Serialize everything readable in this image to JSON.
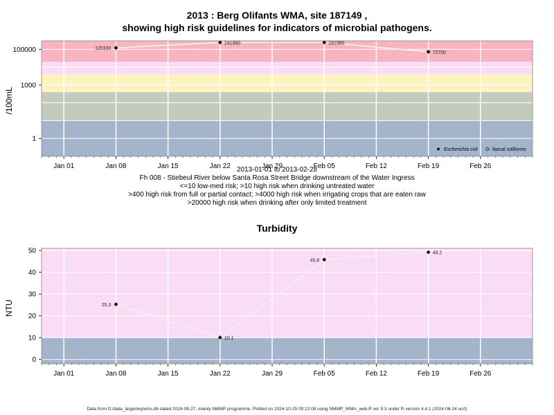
{
  "page": {
    "title_line1": "2013 : Berg Olifants WMA, site 187149 ,",
    "title_line2": "showing high risk guidelines for indicators of microbial pathogens.",
    "caption_lines": [
      "2013-01-01 to 2013-02-28",
      "Fh 008 - Stiebeul River below Santa Rosa Street Bridge downstream of the Water Ingress",
      "<=10 low-med risk; >10 high risk when drinking untreated water",
      ">400 high risk from full or partial contact; >4000 high risk when irrigating crops that are eaten raw",
      ">20000 high risk when drinking after only limited treatment"
    ],
    "footer": "Data from D:/data_large/wq/wms.db dated 2024-08-27, mainly NMMP programme. Plotted on 2024-10-25 00:12:08 using NMMP_WMA_web.R ver 9.3 under R version 4.4.1 (2024-06-14 ucrt)"
  },
  "chart_data": [
    {
      "type": "line",
      "title": "",
      "ylabel": "/100mL",
      "xlabel": "",
      "y_scale": "log10",
      "ylim": [
        0.1,
        300000
      ],
      "xlim": [
        "2012-12-29",
        "2013-03-05"
      ],
      "y_ticks": [
        1,
        1000,
        100000
      ],
      "y_tick_labels": [
        "1",
        "1000",
        "100000"
      ],
      "x_ticks": [
        "2013-01-01",
        "2013-01-08",
        "2013-01-15",
        "2013-01-22",
        "2013-01-29",
        "2013-02-05",
        "2013-02-12",
        "2013-02-19",
        "2013-02-26"
      ],
      "x_tick_labels": [
        "Jan 01",
        "Jan 08",
        "Jan 15",
        "Jan 22",
        "Jan 29",
        "Feb 05",
        "Feb 12",
        "Feb 19",
        "Feb 26"
      ],
      "grid": true,
      "risk_bands": [
        {
          "from": 0.1,
          "to": 10,
          "color": "#a3b4cb"
        },
        {
          "from": 10,
          "to": 400,
          "color": "#c3cbbf"
        },
        {
          "from": 400,
          "to": 4000,
          "color": "#fbf4c1"
        },
        {
          "from": 4000,
          "to": 20000,
          "color": "#fbdcf6"
        },
        {
          "from": 20000,
          "to": 300000,
          "color": "#f8b4c0"
        }
      ],
      "series": [
        {
          "name": "Escherichia coli",
          "x": [
            "2013-01-08",
            "2013-01-22",
            "2013-02-05",
            "2013-02-19"
          ],
          "values": [
            120330,
            241960,
            241960,
            72700
          ],
          "labels": [
            "120330",
            "241960",
            "241960",
            "72700"
          ]
        },
        {
          "name": "faecal coliforms",
          "x": [],
          "values": []
        }
      ],
      "legend_position": "bottom-right"
    },
    {
      "type": "line",
      "title": "Turbidity",
      "ylabel": "NTU",
      "xlabel": "",
      "y_scale": "linear",
      "ylim": [
        -2,
        51
      ],
      "xlim": [
        "2012-12-29",
        "2013-03-05"
      ],
      "y_ticks": [
        0,
        10,
        20,
        30,
        40,
        50
      ],
      "y_tick_labels": [
        "0",
        "10",
        "20",
        "30",
        "40",
        "50"
      ],
      "x_ticks": [
        "2013-01-01",
        "2013-01-08",
        "2013-01-15",
        "2013-01-22",
        "2013-01-29",
        "2013-02-05",
        "2013-02-12",
        "2013-02-19",
        "2013-02-26"
      ],
      "x_tick_labels": [
        "Jan 01",
        "Jan 08",
        "Jan 15",
        "Jan 22",
        "Jan 29",
        "Feb 05",
        "Feb 12",
        "Feb 19",
        "Feb 26"
      ],
      "grid": true,
      "risk_bands": [
        {
          "from": -2,
          "to": 10,
          "color": "#a3b4cb"
        },
        {
          "from": 10,
          "to": 51,
          "color": "#fbdcf6"
        }
      ],
      "series": [
        {
          "name": "",
          "x": [
            "2013-01-08",
            "2013-01-22",
            "2013-02-05",
            "2013-02-19"
          ],
          "values": [
            25.3,
            10.1,
            45.8,
            49.2
          ],
          "labels": [
            "25.3",
            "10.1",
            "45.8",
            "49.2"
          ]
        }
      ]
    }
  ]
}
